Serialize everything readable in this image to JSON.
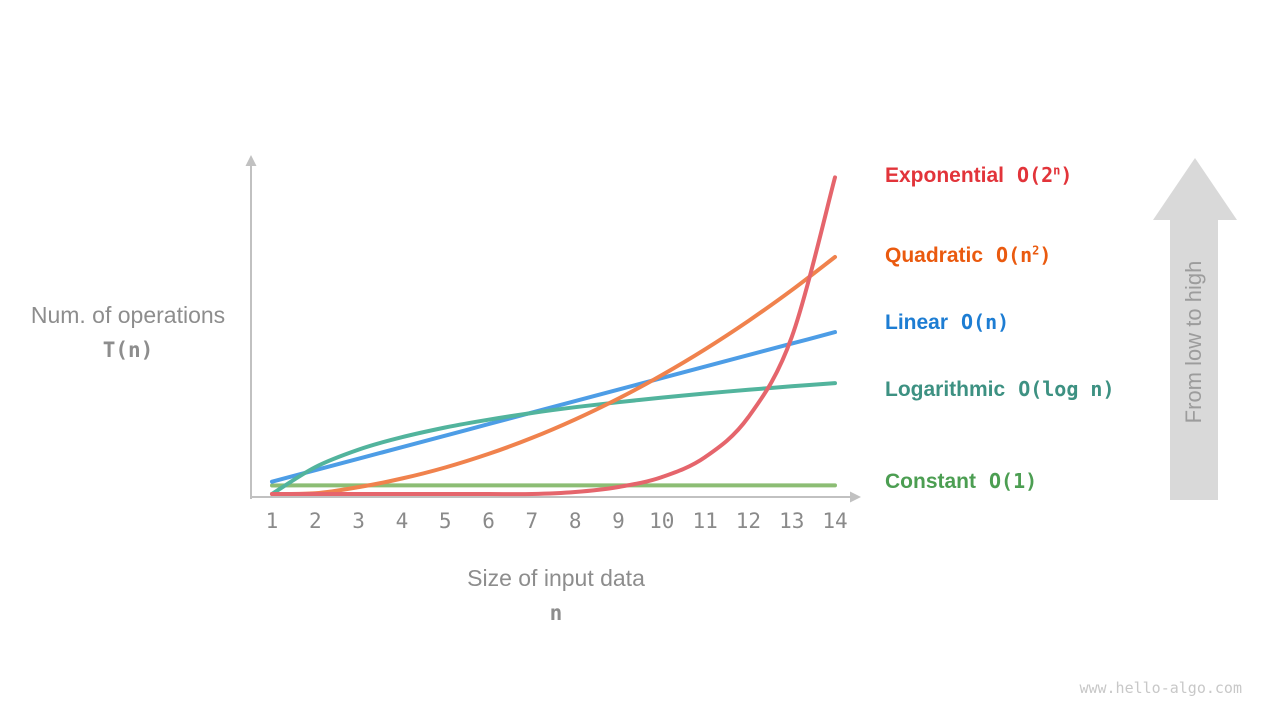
{
  "page": {
    "watermark": "www.hello-algo.com"
  },
  "chart_data": {
    "type": "line",
    "title": "",
    "x_label": "Size of input data",
    "x_symbol": "n",
    "y_label": "Num. of operations",
    "y_symbol": "T(n)",
    "x": [
      1,
      2,
      3,
      4,
      5,
      6,
      7,
      8,
      9,
      10,
      11,
      12,
      13,
      14
    ],
    "x_ticks": [
      "1",
      "2",
      "3",
      "4",
      "5",
      "6",
      "7",
      "8",
      "9",
      "10",
      "11",
      "12",
      "13",
      "14"
    ],
    "x_range": [
      1,
      14
    ],
    "grid": false,
    "legend_position": "right",
    "y_unit": "normalized fraction of plot height (unlabeled axis)",
    "annotation": {
      "arrow_label": "From low to high",
      "arrow_direction": "up",
      "arrow_color": "#d9d9d9",
      "arrow_label_color": "#9c9c9c"
    },
    "axis_color": "#c1c1c1",
    "series": [
      {
        "name": "Exponential",
        "formula": "O(2^n)",
        "formula_pre": "O(2",
        "formula_sup": "n",
        "formula_post": ")",
        "label_color": "#e2343a",
        "curve_color": "#e5656c",
        "values_norm": [
          0,
          0.0001,
          0.0003,
          0.0008,
          0.0017,
          0.0036,
          0.0072,
          0.0146,
          0.0293,
          0.0586,
          0.1174,
          0.2349,
          0.4699,
          0.94
        ]
      },
      {
        "name": "Quadratic",
        "formula": "O(n^2)",
        "formula_pre": "O(n",
        "formula_sup": "2",
        "formula_post": ")",
        "label_color": "#ea5a0f",
        "curve_color": "#f0824d",
        "values_norm": [
          0,
          0.0109,
          0.029,
          0.0543,
          0.0869,
          0.1267,
          0.1738,
          0.2281,
          0.2896,
          0.3584,
          0.4344,
          0.5177,
          0.6082,
          0.706
        ]
      },
      {
        "name": "Linear",
        "formula": "O(n)",
        "formula_pre": "O(n)",
        "formula_sup": "",
        "formula_post": "",
        "label_color": "#1d7dd3",
        "curve_color": "#4d9de6",
        "values_norm": [
          0.045,
          0.0789,
          0.1127,
          0.1466,
          0.1804,
          0.2143,
          0.2481,
          0.282,
          0.3158,
          0.3497,
          0.3835,
          0.4174,
          0.4512,
          0.485
        ]
      },
      {
        "name": "Logarithmic",
        "formula": "O(log n)",
        "formula_pre": "O(log n)",
        "formula_sup": "",
        "formula_post": "",
        "label_color": "#3d9182",
        "curve_color": "#52b49d",
        "values_norm": [
          0,
          0.088,
          0.1394,
          0.176,
          0.2043,
          0.2274,
          0.247,
          0.264,
          0.2789,
          0.2923,
          0.3044,
          0.3154,
          0.3256,
          0.335
        ]
      },
      {
        "name": "Constant",
        "formula": "O(1)",
        "formula_pre": "O(1)",
        "formula_sup": "",
        "formula_post": "",
        "label_color": "#4c9e52",
        "curve_color": "#8cbd74",
        "values_norm": [
          0.034,
          0.034,
          0.034,
          0.034,
          0.034,
          0.034,
          0.034,
          0.034,
          0.034,
          0.034,
          0.034,
          0.034,
          0.034,
          0.034
        ]
      }
    ]
  }
}
